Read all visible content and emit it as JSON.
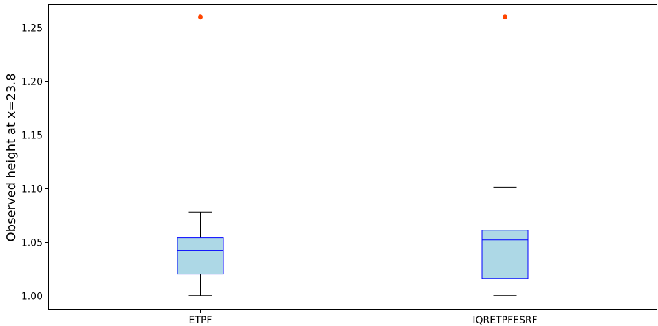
{
  "chart_data": {
    "type": "box",
    "title": "",
    "xlabel": "",
    "ylabel": "Observed height at x=23.8",
    "ylim": [
      0.987,
      1.272
    ],
    "yticks": [
      1.0,
      1.05,
      1.1,
      1.15,
      1.2,
      1.25
    ],
    "ytick_labels": [
      "1.00",
      "1.05",
      "1.10",
      "1.15",
      "1.20",
      "1.25"
    ],
    "grid": false,
    "categories": [
      "ETPF",
      "IQRETPFESRF"
    ],
    "boxes": [
      {
        "label": "ETPF",
        "whisker_low": 1.0,
        "q1": 1.02,
        "median": 1.042,
        "q3": 1.054,
        "whisker_high": 1.078,
        "outliers": [
          1.26
        ]
      },
      {
        "label": "IQRETPFESRF",
        "whisker_low": 1.0,
        "q1": 1.016,
        "median": 1.052,
        "q3": 1.061,
        "whisker_high": 1.101,
        "outliers": [
          1.26
        ]
      }
    ],
    "colors": {
      "box_fill": "#add8e6",
      "box_edge": "#0000ff",
      "median": "#0000ff",
      "whisker": "#000000",
      "outlier": "#ff4500"
    }
  }
}
